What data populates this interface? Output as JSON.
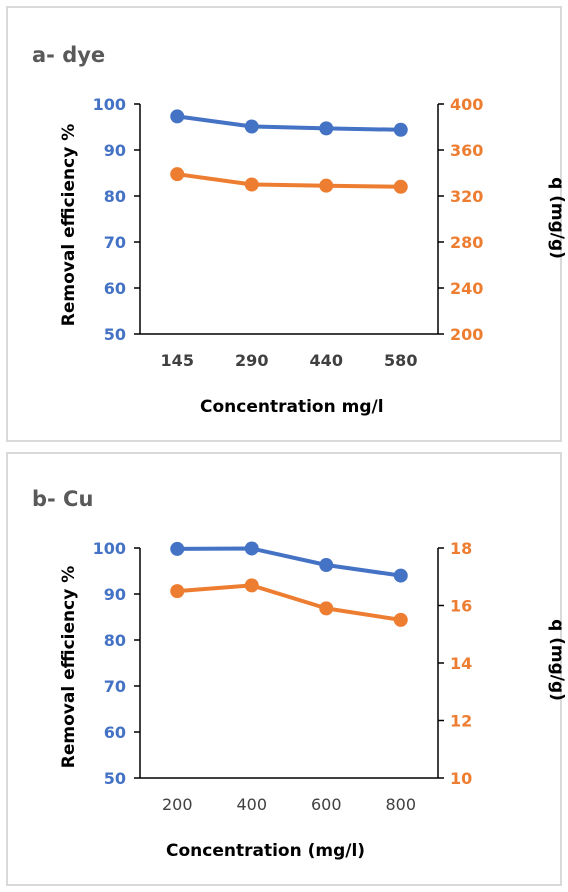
{
  "colors": {
    "left_series": "#4472c4",
    "right_series": "#ed7d31",
    "axis": "#000000",
    "panel_border": "#d9d9d9"
  },
  "chart_data": [
    {
      "type": "line",
      "title": "a- dye",
      "categories": [
        "145",
        "290",
        "440",
        "580"
      ],
      "xlabel": "Concentration mg/l",
      "ylabel": "Removal efficiency %",
      "y2label": "q (mg/g)",
      "ylim": [
        50,
        100
      ],
      "y2lim": [
        200,
        400
      ],
      "yticks": [
        "50",
        "60",
        "70",
        "80",
        "90",
        "100"
      ],
      "y2ticks": [
        "200",
        "240",
        "280",
        "320",
        "360",
        "400"
      ],
      "grid": false,
      "series": [
        {
          "axis": "left",
          "values": [
            97.3,
            95.1,
            94.7,
            94.4
          ]
        },
        {
          "axis": "right",
          "values": [
            339,
            330,
            329,
            328
          ]
        }
      ]
    },
    {
      "type": "line",
      "title": "b- Cu",
      "categories": [
        "200",
        "400",
        "600",
        "800"
      ],
      "xlabel": "Concentration (mg/l)",
      "ylabel": "Removal efficiency %",
      "y2label": "q (mg/g)",
      "ylim": [
        50,
        100
      ],
      "y2lim": [
        10,
        18
      ],
      "yticks": [
        "50",
        "60",
        "70",
        "80",
        "90",
        "100"
      ],
      "y2ticks": [
        "10",
        "12",
        "14",
        "16",
        "18"
      ],
      "grid": false,
      "series": [
        {
          "axis": "left",
          "values": [
            99.8,
            99.9,
            96.3,
            94.0
          ]
        },
        {
          "axis": "right",
          "values": [
            16.5,
            16.7,
            15.9,
            15.5
          ]
        }
      ]
    }
  ]
}
